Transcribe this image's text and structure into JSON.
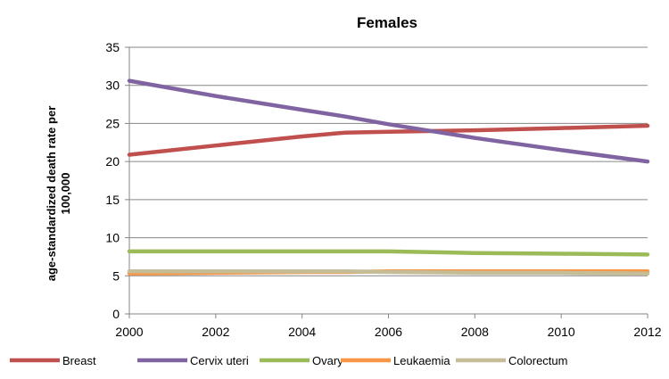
{
  "chart_data": {
    "type": "line",
    "title": "Females",
    "ylabel_lines": [
      "age-standardized death rate per",
      "100,000"
    ],
    "xlabel": "",
    "x": [
      2000,
      2002,
      2004,
      2005,
      2006,
      2008,
      2010,
      2012
    ],
    "x_ticks": [
      "2000",
      "2002",
      "2004",
      "2006",
      "2008",
      "2010",
      "2012"
    ],
    "y_ticks": [
      "0",
      "5",
      "10",
      "15",
      "20",
      "25",
      "30",
      "35"
    ],
    "xlim": [
      2000,
      2012
    ],
    "ylim": [
      0,
      35
    ],
    "grid": "horizontal",
    "legend_position": "bottom",
    "series": [
      {
        "name": "Breast",
        "color": "#C0504D",
        "values": [
          20.9,
          22.1,
          23.3,
          23.8,
          23.9,
          24.1,
          24.4,
          24.7
        ]
      },
      {
        "name": "Cervix uteri",
        "color": "#8064A2",
        "values": [
          30.6,
          28.6,
          26.8,
          25.9,
          24.9,
          23.1,
          21.5,
          20.0
        ]
      },
      {
        "name": "Ovary",
        "color": "#9BBB59",
        "values": [
          8.2,
          8.2,
          8.2,
          8.2,
          8.2,
          8.0,
          7.9,
          7.8
        ]
      },
      {
        "name": "Leukaemia",
        "color": "#F79646",
        "values": [
          5.3,
          5.4,
          5.5,
          5.5,
          5.6,
          5.6,
          5.6,
          5.6
        ]
      },
      {
        "name": "Colorectum",
        "color": "#C4BD97",
        "values": [
          5.6,
          5.6,
          5.6,
          5.6,
          5.5,
          5.4,
          5.4,
          5.3
        ]
      }
    ]
  }
}
